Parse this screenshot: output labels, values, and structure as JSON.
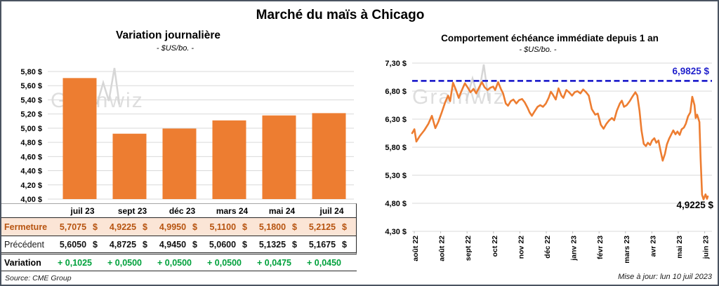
{
  "page": {
    "title": "Marché du maïs à Chicago",
    "update_text": "Mise à jour: lun 10 juil 2023",
    "source": "Source: CME Group",
    "watermark": "Grainwiz"
  },
  "colors": {
    "accent_orange": "#ED7D31",
    "close_row_bg": "#FBE5D6",
    "close_text": "#B75410",
    "variation_green": "#00A13C",
    "reference_blue": "#2121CC",
    "gridline": "#D9D9D9",
    "frame_border": "#4A5360"
  },
  "table": {
    "currency": "$",
    "columns": [
      "juil 23",
      "sept 23",
      "déc 23",
      "mars 24",
      "mai 24",
      "juil 24"
    ],
    "rows": [
      {
        "label": "Fermeture",
        "values": [
          "5,7075",
          "4,9225",
          "4,9950",
          "5,1100",
          "5,1800",
          "5,2125"
        ]
      },
      {
        "label": "Précédent",
        "values": [
          "5,6050",
          "4,8725",
          "4,9450",
          "5,0600",
          "5,1325",
          "5,1675"
        ]
      },
      {
        "label": "Variation",
        "values": [
          "+ 0,1025",
          "+ 0,0500",
          "+ 0,0500",
          "+ 0,0500",
          "+ 0,0475",
          "+ 0,0450"
        ]
      }
    ]
  },
  "chart_data": [
    {
      "type": "bar",
      "title": "Variation journalière",
      "subtitle": "- $US/bo. -",
      "categories": [
        "juil 23",
        "sept 23",
        "déc 23",
        "mars 24",
        "mai 24",
        "juil 24"
      ],
      "values": [
        5.7075,
        4.9225,
        4.995,
        5.11,
        5.18,
        5.2125
      ],
      "ylim": [
        4.0,
        5.8
      ],
      "ytick_labels": [
        "5,80 $",
        "5,60 $",
        "5,40 $",
        "5,20 $",
        "5,00 $",
        "4,80 $",
        "4,60 $",
        "4,40 $",
        "4,20 $",
        "4,00 $"
      ],
      "bar_color": "#ED7D31",
      "grid": true,
      "legend": "none"
    },
    {
      "type": "line",
      "title": "Comportement échéance immédiate depuis 1 an",
      "subtitle": "- $US/bo. -",
      "ylim": [
        4.3,
        7.3
      ],
      "ytick_labels": [
        "7,30 $",
        "6,80 $",
        "6,30 $",
        "5,80 $",
        "5,30 $",
        "4,80 $",
        "4,30 $"
      ],
      "xtick_labels": [
        "août 22",
        "août 22",
        "sept 22",
        "oct 22",
        "nov 22",
        "déc 22",
        "janv 23",
        "févr 23",
        "mars 23",
        "avr 23",
        "mai 23",
        "juin 23"
      ],
      "reference_line": {
        "value": 6.9825,
        "label": "6,9825 $"
      },
      "last_value": 4.9225,
      "last_value_label": "4,9225 $",
      "line_color": "#ED7D31",
      "grid": true,
      "legend": "none",
      "x_range_months": [
        0,
        12
      ],
      "points": [
        [
          0,
          6.05
        ],
        [
          0.09,
          6.12
        ],
        [
          0.17,
          5.9
        ],
        [
          0.31,
          6.0
        ],
        [
          0.49,
          6.1
        ],
        [
          0.66,
          6.22
        ],
        [
          0.8,
          6.36
        ],
        [
          0.94,
          6.14
        ],
        [
          1.06,
          6.25
        ],
        [
          1.2,
          6.42
        ],
        [
          1.34,
          6.6
        ],
        [
          1.46,
          6.72
        ],
        [
          1.54,
          6.62
        ],
        [
          1.66,
          6.95
        ],
        [
          1.77,
          6.83
        ],
        [
          1.89,
          6.68
        ],
        [
          2.0,
          6.8
        ],
        [
          2.14,
          6.94
        ],
        [
          2.26,
          6.86
        ],
        [
          2.37,
          6.78
        ],
        [
          2.49,
          6.84
        ],
        [
          2.6,
          6.76
        ],
        [
          2.71,
          6.86
        ],
        [
          2.83,
          6.96
        ],
        [
          2.94,
          6.87
        ],
        [
          3.06,
          6.82
        ],
        [
          3.17,
          6.86
        ],
        [
          3.29,
          6.88
        ],
        [
          3.37,
          6.82
        ],
        [
          3.49,
          6.96
        ],
        [
          3.6,
          6.84
        ],
        [
          3.69,
          6.76
        ],
        [
          3.8,
          6.58
        ],
        [
          3.89,
          6.54
        ],
        [
          4.0,
          6.62
        ],
        [
          4.11,
          6.65
        ],
        [
          4.23,
          6.58
        ],
        [
          4.34,
          6.64
        ],
        [
          4.46,
          6.66
        ],
        [
          4.57,
          6.6
        ],
        [
          4.69,
          6.5
        ],
        [
          4.77,
          6.42
        ],
        [
          4.86,
          6.36
        ],
        [
          4.97,
          6.44
        ],
        [
          5.09,
          6.52
        ],
        [
          5.2,
          6.55
        ],
        [
          5.31,
          6.52
        ],
        [
          5.43,
          6.58
        ],
        [
          5.54,
          6.68
        ],
        [
          5.63,
          6.79
        ],
        [
          5.71,
          6.74
        ],
        [
          5.83,
          6.65
        ],
        [
          5.94,
          6.85
        ],
        [
          6.06,
          6.72
        ],
        [
          6.14,
          6.68
        ],
        [
          6.26,
          6.82
        ],
        [
          6.37,
          6.78
        ],
        [
          6.49,
          6.72
        ],
        [
          6.6,
          6.78
        ],
        [
          6.71,
          6.8
        ],
        [
          6.83,
          6.76
        ],
        [
          6.94,
          6.83
        ],
        [
          7.06,
          6.78
        ],
        [
          7.17,
          6.72
        ],
        [
          7.29,
          6.48
        ],
        [
          7.43,
          6.38
        ],
        [
          7.54,
          6.4
        ],
        [
          7.66,
          6.2
        ],
        [
          7.77,
          6.13
        ],
        [
          7.89,
          6.22
        ],
        [
          8.0,
          6.28
        ],
        [
          8.11,
          6.32
        ],
        [
          8.2,
          6.28
        ],
        [
          8.31,
          6.45
        ],
        [
          8.43,
          6.58
        ],
        [
          8.51,
          6.63
        ],
        [
          8.6,
          6.52
        ],
        [
          8.71,
          6.55
        ],
        [
          8.83,
          6.62
        ],
        [
          8.94,
          6.7
        ],
        [
          9.06,
          6.78
        ],
        [
          9.14,
          6.72
        ],
        [
          9.23,
          6.45
        ],
        [
          9.31,
          6.1
        ],
        [
          9.4,
          5.86
        ],
        [
          9.49,
          5.82
        ],
        [
          9.57,
          5.88
        ],
        [
          9.66,
          5.84
        ],
        [
          9.74,
          5.92
        ],
        [
          9.83,
          5.96
        ],
        [
          9.91,
          5.88
        ],
        [
          10.0,
          5.92
        ],
        [
          10.09,
          5.72
        ],
        [
          10.17,
          5.56
        ],
        [
          10.26,
          5.68
        ],
        [
          10.34,
          5.85
        ],
        [
          10.43,
          5.95
        ],
        [
          10.51,
          6.02
        ],
        [
          10.6,
          6.1
        ],
        [
          10.69,
          6.03
        ],
        [
          10.77,
          6.08
        ],
        [
          10.86,
          6.02
        ],
        [
          10.94,
          6.12
        ],
        [
          11.03,
          6.15
        ],
        [
          11.11,
          6.22
        ],
        [
          11.2,
          6.35
        ],
        [
          11.29,
          6.42
        ],
        [
          11.37,
          6.7
        ],
        [
          11.46,
          6.55
        ],
        [
          11.51,
          6.32
        ],
        [
          11.57,
          6.38
        ],
        [
          11.66,
          6.25
        ],
        [
          11.71,
          5.6
        ],
        [
          11.77,
          4.95
        ],
        [
          11.83,
          4.87
        ],
        [
          11.91,
          4.96
        ],
        [
          11.97,
          4.88
        ],
        [
          12.0,
          4.9225
        ]
      ]
    }
  ]
}
